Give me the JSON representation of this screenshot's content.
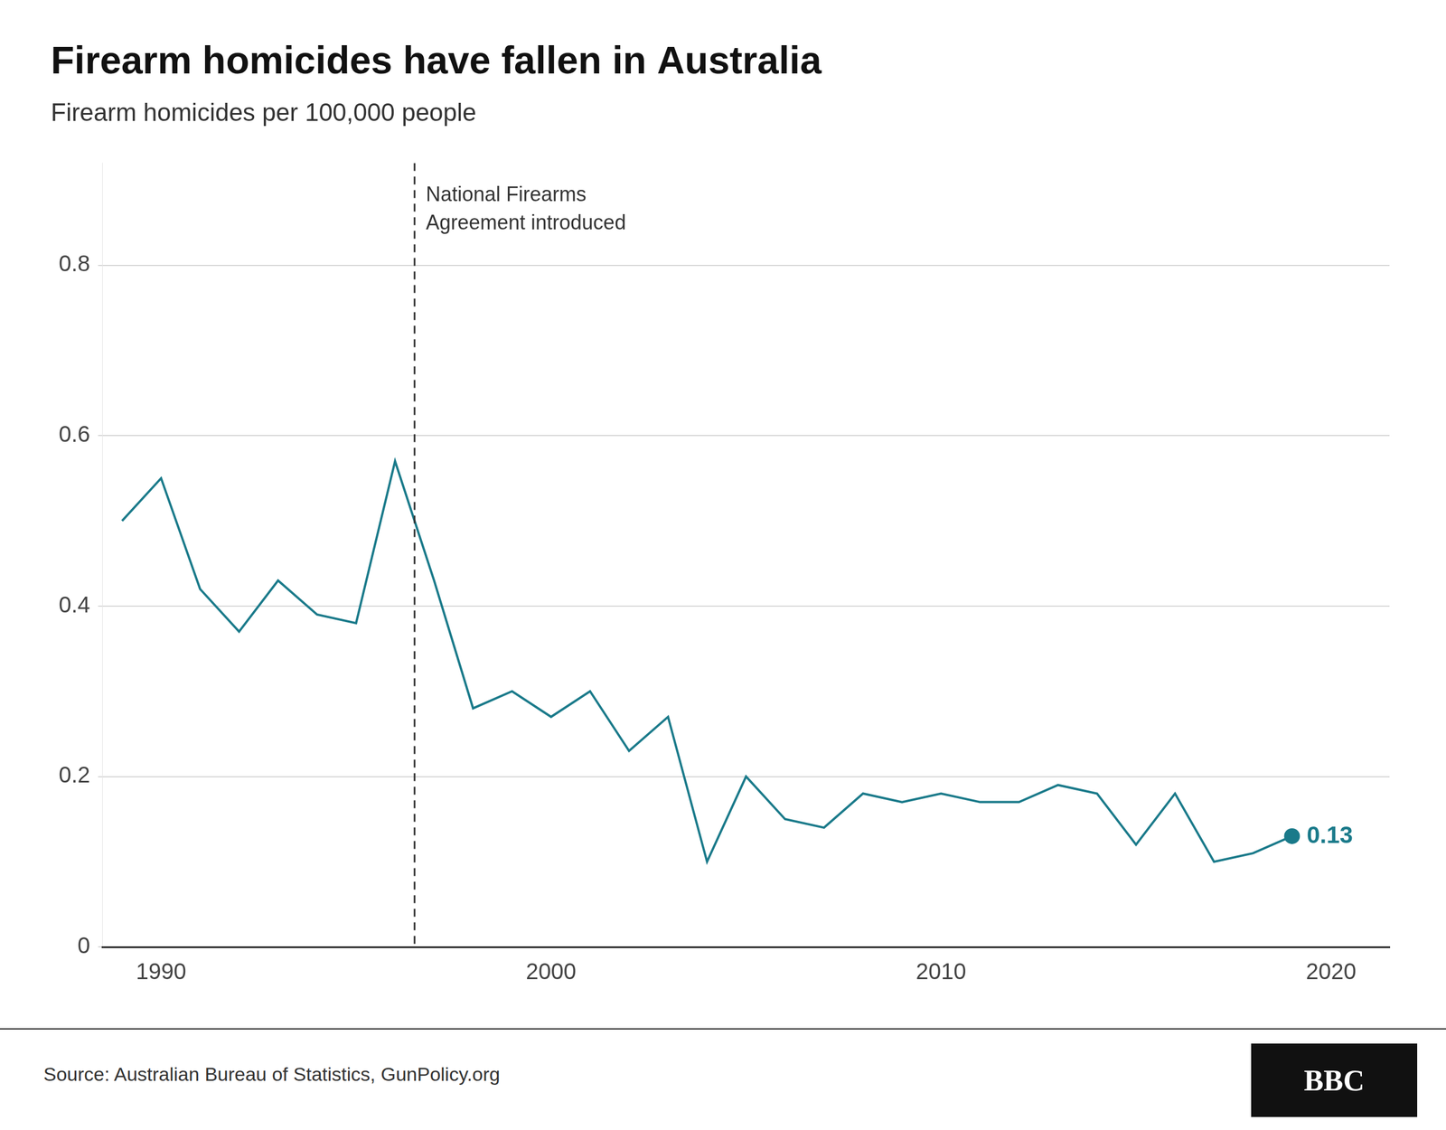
{
  "chart_data": {
    "type": "line",
    "title": "Firearm homicides have fallen in Australia",
    "subtitle": "Firearm homicides per 100,000 people",
    "source": "Source: Australian Bureau of Statistics, GunPolicy.org",
    "logo": "BBC",
    "color": "#1a7a8a",
    "x": [
      1989,
      1990,
      1991,
      1992,
      1993,
      1994,
      1995,
      1996,
      1997,
      1998,
      1999,
      2000,
      2001,
      2002,
      2003,
      2004,
      2005,
      2006,
      2007,
      2008,
      2009,
      2010,
      2011,
      2012,
      2013,
      2014,
      2015,
      2016,
      2017,
      2018,
      2019
    ],
    "values": [
      0.5,
      0.55,
      0.42,
      0.37,
      0.43,
      0.39,
      0.38,
      0.57,
      0.43,
      0.28,
      0.3,
      0.27,
      0.3,
      0.23,
      0.27,
      0.1,
      0.2,
      0.15,
      0.14,
      0.18,
      0.17,
      0.18,
      0.17,
      0.17,
      0.19,
      0.18,
      0.12,
      0.18,
      0.1,
      0.11,
      0.13
    ],
    "xlim": [
      1988.5,
      2021.5
    ],
    "xticks": [
      1990,
      2000,
      2010,
      2020
    ],
    "ylim": [
      0,
      0.92
    ],
    "yticks": [
      0,
      0.2,
      0.4,
      0.6,
      0.8
    ],
    "grid": "y",
    "annotations": [
      {
        "x": 1996.5,
        "line_style": "dashed",
        "text": "National Firearms\nAgreement introduced"
      },
      {
        "x": 2019,
        "y": 0.13,
        "text": "0.13"
      }
    ]
  }
}
